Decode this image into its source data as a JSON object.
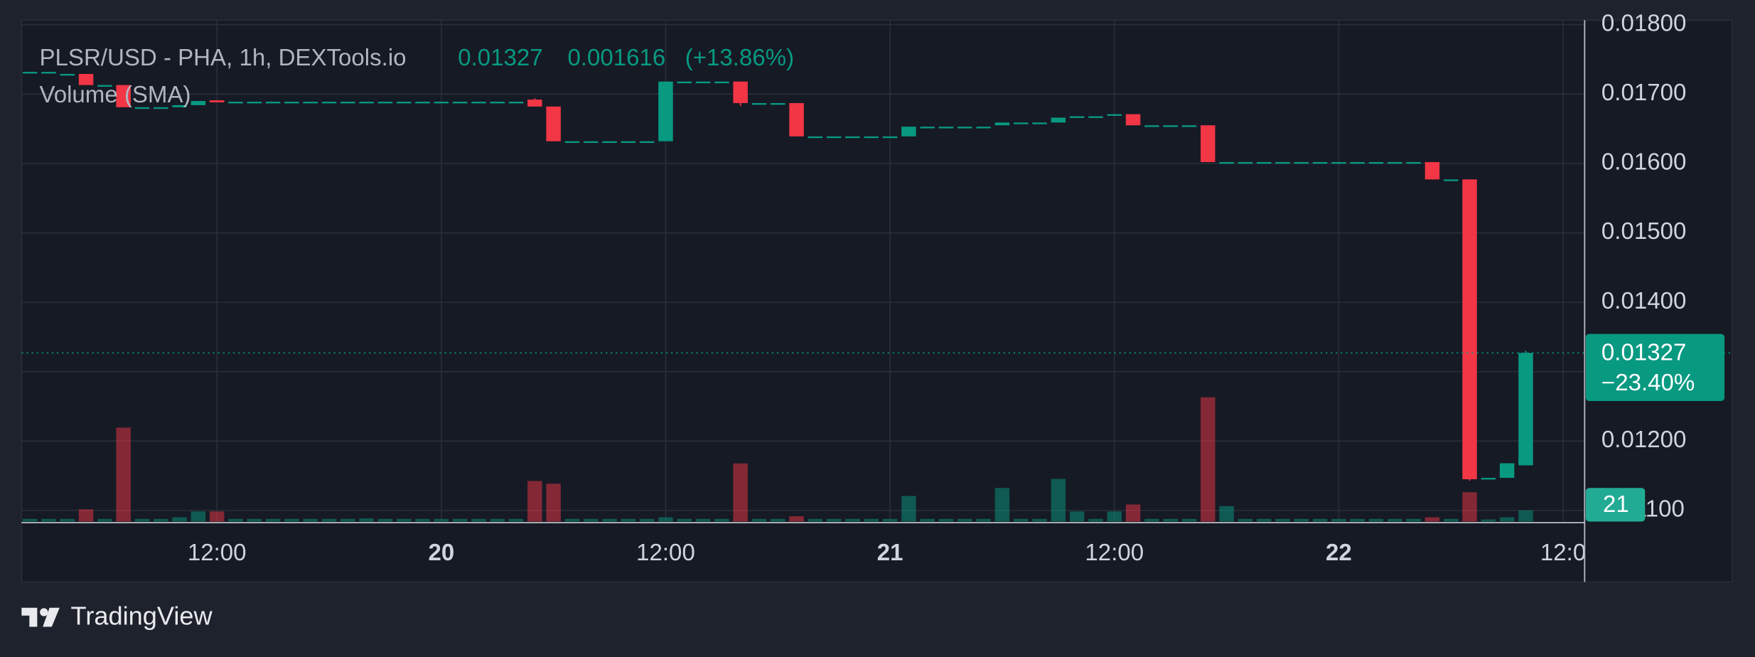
{
  "chart_data": {
    "type": "candlestick",
    "title": "PLSR/USD - PHA, 1h, DEXTools.io",
    "last": 0.01327,
    "change": 0.001616,
    "change_label": "(+13.86%)",
    "volume_label": "Volume (SMA)",
    "price_tag_change": "−23.40%",
    "up_color": "#089981",
    "down_color": "#f23645",
    "grid": true,
    "ylim": [
      0.01084,
      0.018065
    ],
    "yticks": [
      {
        "value": 0.011,
        "label": "0.01100"
      },
      {
        "value": 0.012,
        "label": "0.01200"
      },
      {
        "value": 0.013,
        "label": "0.01300"
      },
      {
        "value": 0.014,
        "label": "0.01400"
      },
      {
        "value": 0.015,
        "label": "0.01500"
      },
      {
        "value": 0.016,
        "label": "0.01600"
      },
      {
        "value": 0.017,
        "label": "0.01700"
      },
      {
        "value": 0.018,
        "label": "0.01800"
      }
    ],
    "categories": [
      null,
      null,
      null,
      null,
      null,
      null,
      null,
      null,
      null,
      null,
      "12:00",
      null,
      null,
      null,
      null,
      null,
      null,
      null,
      null,
      null,
      null,
      null,
      "20",
      null,
      null,
      null,
      null,
      null,
      null,
      null,
      null,
      null,
      null,
      null,
      "12:00",
      null,
      null,
      null,
      null,
      null,
      null,
      null,
      null,
      null,
      null,
      null,
      "21",
      null,
      null,
      null,
      null,
      null,
      null,
      null,
      null,
      null,
      null,
      null,
      "12:00",
      null,
      null,
      null,
      null,
      null,
      null,
      null,
      null,
      null,
      null,
      null,
      "22",
      null,
      null,
      null,
      null,
      null,
      null,
      null,
      null,
      null,
      null,
      null,
      "12:0"
    ],
    "open": [
      0.01732,
      0.01732,
      0.01729,
      0.01729,
      0.01713,
      0.01713,
      0.01681,
      0.01681,
      0.01681,
      0.01684,
      0.01691,
      0.01689,
      0.01689,
      0.01689,
      0.01689,
      0.01689,
      0.01689,
      0.01689,
      0.01689,
      0.01689,
      0.01689,
      0.01689,
      0.01689,
      0.01689,
      0.01689,
      0.01689,
      0.01689,
      0.01692,
      0.01682,
      0.01632,
      0.01632,
      0.01632,
      0.01632,
      0.01632,
      0.01632,
      0.01718,
      0.01718,
      0.01718,
      0.01718,
      0.01687,
      0.01687,
      0.01687,
      0.01639,
      0.01639,
      0.01639,
      0.01639,
      0.01639,
      0.01639,
      0.01653,
      0.01653,
      0.01653,
      0.01653,
      0.01655,
      0.01659,
      0.01659,
      0.01659,
      0.01668,
      0.01668,
      0.01671,
      0.01671,
      0.01655,
      0.01655,
      0.01655,
      0.01655,
      0.01602,
      0.01602,
      0.01602,
      0.01602,
      0.01602,
      0.01602,
      0.01602,
      0.01602,
      0.01602,
      0.01602,
      0.01602,
      0.01602,
      0.01577,
      0.01577,
      0.01147,
      0.01147,
      0.01165,
      null,
      null
    ],
    "close": [
      0.01732,
      0.01732,
      0.01729,
      0.01713,
      0.01713,
      0.01681,
      0.01681,
      0.01681,
      0.01684,
      0.0169,
      0.01688,
      0.01689,
      0.01689,
      0.01689,
      0.01689,
      0.01689,
      0.01689,
      0.01689,
      0.01689,
      0.01689,
      0.01689,
      0.01689,
      0.01689,
      0.01689,
      0.01689,
      0.01689,
      0.01689,
      0.01682,
      0.01632,
      0.01632,
      0.01632,
      0.01632,
      0.01632,
      0.01632,
      0.01718,
      0.01718,
      0.01718,
      0.01718,
      0.01687,
      0.01687,
      0.01687,
      0.01639,
      0.01639,
      0.01639,
      0.01639,
      0.01639,
      0.01639,
      0.01653,
      0.01653,
      0.01653,
      0.01653,
      0.01653,
      0.01659,
      0.01659,
      0.01659,
      0.01666,
      0.01668,
      0.01668,
      0.01671,
      0.01655,
      0.01655,
      0.01655,
      0.01655,
      0.01602,
      0.01602,
      0.01602,
      0.01602,
      0.01602,
      0.01602,
      0.01602,
      0.01602,
      0.01602,
      0.01602,
      0.01602,
      0.01602,
      0.01577,
      0.01577,
      0.01145,
      0.01147,
      0.01168,
      0.01327,
      null,
      null
    ],
    "high": [
      0.01732,
      0.01732,
      0.01729,
      0.01729,
      0.01713,
      0.01713,
      0.01681,
      0.01681,
      0.01684,
      0.0169,
      0.01691,
      0.01689,
      0.01689,
      0.01689,
      0.01689,
      0.01689,
      0.01689,
      0.01689,
      0.01689,
      0.01689,
      0.01689,
      0.01689,
      0.01689,
      0.01689,
      0.01689,
      0.01689,
      0.01689,
      0.01694,
      0.01682,
      0.01632,
      0.01632,
      0.01632,
      0.01632,
      0.01632,
      0.01718,
      0.01718,
      0.01718,
      0.01718,
      0.01718,
      0.01687,
      0.01687,
      0.01687,
      0.01639,
      0.01639,
      0.01639,
      0.01639,
      0.01639,
      0.01653,
      0.01653,
      0.01653,
      0.01653,
      0.01653,
      0.01659,
      0.01659,
      0.01659,
      0.01666,
      0.01668,
      0.01668,
      0.01671,
      0.01671,
      0.01655,
      0.01655,
      0.01655,
      0.01655,
      0.01602,
      0.01602,
      0.01602,
      0.01602,
      0.01602,
      0.01602,
      0.01602,
      0.01602,
      0.01602,
      0.01602,
      0.01602,
      0.01602,
      0.01577,
      0.01577,
      0.01147,
      0.01168,
      0.0133,
      null,
      null
    ],
    "low": [
      0.01732,
      0.01732,
      0.01729,
      0.01713,
      0.01713,
      0.01681,
      0.01681,
      0.01681,
      0.01681,
      0.01684,
      0.01688,
      0.01689,
      0.01689,
      0.01689,
      0.01689,
      0.01689,
      0.01689,
      0.01689,
      0.01689,
      0.01689,
      0.01689,
      0.01689,
      0.01689,
      0.01689,
      0.01689,
      0.01689,
      0.01689,
      0.01682,
      0.01632,
      0.01632,
      0.01632,
      0.01632,
      0.01632,
      0.01632,
      0.01632,
      0.01718,
      0.01718,
      0.01718,
      0.01683,
      0.01687,
      0.01687,
      0.01639,
      0.01639,
      0.01639,
      0.01639,
      0.01639,
      0.01639,
      0.01639,
      0.01653,
      0.01653,
      0.01653,
      0.01653,
      0.01655,
      0.01659,
      0.01659,
      0.01659,
      0.01668,
      0.01668,
      0.01671,
      0.01655,
      0.01655,
      0.01655,
      0.01655,
      0.01602,
      0.01602,
      0.01602,
      0.01602,
      0.01602,
      0.01602,
      0.01602,
      0.01602,
      0.01602,
      0.01602,
      0.01602,
      0.01602,
      0.01577,
      0.01577,
      0.01143,
      0.01147,
      0.01147,
      0.01165,
      null,
      null
    ],
    "volume": [
      5,
      5,
      5,
      23,
      5,
      176,
      5,
      5,
      8,
      19,
      19,
      5,
      5,
      5,
      5,
      5,
      5,
      5,
      6,
      5,
      5,
      5,
      5,
      5,
      5,
      5,
      5,
      76,
      71,
      5,
      5,
      5,
      5,
      5,
      8,
      5,
      5,
      5,
      109,
      5,
      5,
      10,
      5,
      5,
      5,
      5,
      5,
      48,
      5,
      5,
      5,
      5,
      63,
      5,
      5,
      80,
      19,
      5,
      19,
      32,
      5,
      5,
      5,
      233,
      29,
      5,
      5,
      5,
      5,
      5,
      5,
      5,
      5,
      5,
      5,
      8,
      5,
      55,
      4,
      8,
      21,
      null,
      null
    ]
  },
  "watermark": "TradingView"
}
